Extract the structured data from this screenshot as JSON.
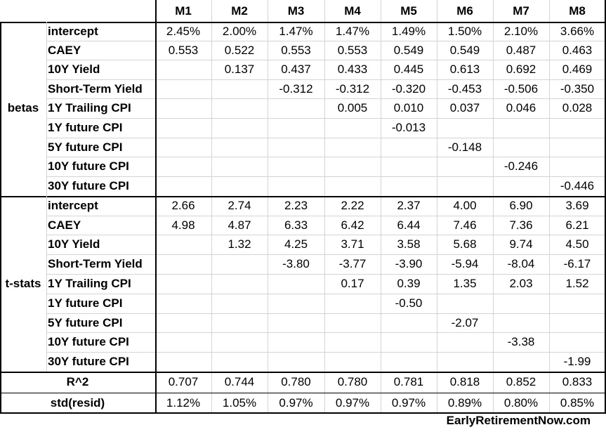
{
  "chart_data": {
    "type": "table",
    "columns": [
      "M1",
      "M2",
      "M3",
      "M4",
      "M5",
      "M6",
      "M7",
      "M8"
    ],
    "sections": [
      {
        "group": "betas",
        "rows": [
          {
            "label": "intercept",
            "values": [
              "2.45%",
              "2.00%",
              "1.47%",
              "1.47%",
              "1.49%",
              "1.50%",
              "2.10%",
              "3.66%"
            ]
          },
          {
            "label": "CAEY",
            "values": [
              "0.553",
              "0.522",
              "0.553",
              "0.553",
              "0.549",
              "0.549",
              "0.487",
              "0.463"
            ]
          },
          {
            "label": "10Y Yield",
            "values": [
              "",
              "0.137",
              "0.437",
              "0.433",
              "0.445",
              "0.613",
              "0.692",
              "0.469"
            ]
          },
          {
            "label": "Short-Term Yield",
            "values": [
              "",
              "",
              "-0.312",
              "-0.312",
              "-0.320",
              "-0.453",
              "-0.506",
              "-0.350"
            ]
          },
          {
            "label": "1Y Trailing CPI",
            "values": [
              "",
              "",
              "",
              "0.005",
              "0.010",
              "0.037",
              "0.046",
              "0.028"
            ]
          },
          {
            "label": "1Y future CPI",
            "values": [
              "",
              "",
              "",
              "",
              "-0.013",
              "",
              "",
              ""
            ]
          },
          {
            "label": "5Y future CPI",
            "values": [
              "",
              "",
              "",
              "",
              "",
              "-0.148",
              "",
              ""
            ]
          },
          {
            "label": "10Y future CPI",
            "values": [
              "",
              "",
              "",
              "",
              "",
              "",
              "-0.246",
              ""
            ]
          },
          {
            "label": "30Y future CPI",
            "values": [
              "",
              "",
              "",
              "",
              "",
              "",
              "",
              "-0.446"
            ]
          }
        ]
      },
      {
        "group": "t-stats",
        "rows": [
          {
            "label": "intercept",
            "values": [
              "2.66",
              "2.74",
              "2.23",
              "2.22",
              "2.37",
              "4.00",
              "6.90",
              "3.69"
            ]
          },
          {
            "label": "CAEY",
            "values": [
              "4.98",
              "4.87",
              "6.33",
              "6.42",
              "6.44",
              "7.46",
              "7.36",
              "6.21"
            ]
          },
          {
            "label": "10Y Yield",
            "values": [
              "",
              "1.32",
              "4.25",
              "3.71",
              "3.58",
              "5.68",
              "9.74",
              "4.50"
            ]
          },
          {
            "label": "Short-Term Yield",
            "values": [
              "",
              "",
              "-3.80",
              "-3.77",
              "-3.90",
              "-5.94",
              "-8.04",
              "-6.17"
            ]
          },
          {
            "label": "1Y Trailing CPI",
            "values": [
              "",
              "",
              "",
              "0.17",
              "0.39",
              "1.35",
              "2.03",
              "1.52"
            ]
          },
          {
            "label": "1Y future CPI",
            "values": [
              "",
              "",
              "",
              "",
              "-0.50",
              "",
              "",
              ""
            ]
          },
          {
            "label": "5Y future CPI",
            "values": [
              "",
              "",
              "",
              "",
              "",
              "-2.07",
              "",
              ""
            ]
          },
          {
            "label": "10Y future CPI",
            "values": [
              "",
              "",
              "",
              "",
              "",
              "",
              "-3.38",
              ""
            ]
          },
          {
            "label": "30Y future CPI",
            "values": [
              "",
              "",
              "",
              "",
              "",
              "",
              "",
              "-1.99"
            ]
          }
        ]
      }
    ],
    "summary_rows": [
      {
        "label": "R^2",
        "values": [
          "0.707",
          "0.744",
          "0.780",
          "0.780",
          "0.781",
          "0.818",
          "0.852",
          "0.833"
        ]
      },
      {
        "label": "std(resid)",
        "values": [
          "1.12%",
          "1.05%",
          "0.97%",
          "0.97%",
          "0.97%",
          "0.89%",
          "0.80%",
          "0.85%"
        ]
      }
    ]
  },
  "footer": "EarlyRetirementNow.com"
}
